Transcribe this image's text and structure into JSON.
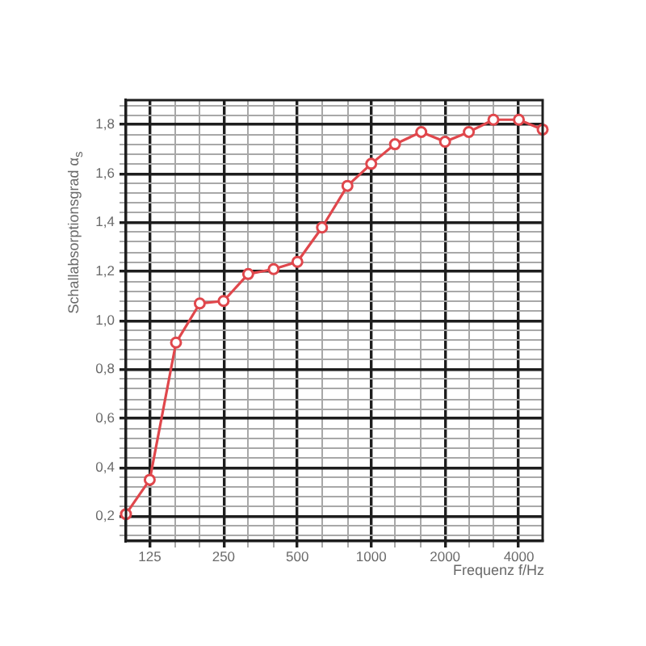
{
  "chart_data": {
    "type": "line",
    "xlabel": "Frequenz f/Hz",
    "ylabel": "Schallabsorptionsgrad α$_{s}$",
    "x": [
      100,
      125,
      160,
      200,
      250,
      315,
      400,
      500,
      630,
      800,
      1000,
      1250,
      1600,
      2000,
      2500,
      3150,
      4000,
      5000
    ],
    "series": [
      {
        "color": "#e0474c",
        "values": [
          0.21,
          0.35,
          0.91,
          1.07,
          1.08,
          1.19,
          1.21,
          1.24,
          1.38,
          1.55,
          1.64,
          1.72,
          1.77,
          1.73,
          1.77,
          1.82,
          1.82,
          1.78
        ]
      }
    ],
    "log": "x",
    "xlim": [
      100,
      5000
    ],
    "ylim": [
      0.1,
      1.9
    ],
    "xticks": [
      125,
      {
        "value": 160,
        "label": null
      },
      {
        "value": 200,
        "label": null
      },
      250,
      {
        "value": 315,
        "label": null
      },
      {
        "value": 400,
        "label": null
      },
      500,
      {
        "value": 630,
        "label": null
      },
      {
        "value": 800,
        "label": null
      },
      1000,
      {
        "value": 1250,
        "label": null
      },
      {
        "value": 1600,
        "label": null
      },
      2000,
      {
        "value": 2500,
        "label": null
      },
      {
        "value": 3150,
        "label": null
      },
      4000
    ],
    "yticks": [
      {
        "value": 0.12,
        "label": null
      },
      {
        "value": 0.16,
        "label": null
      },
      {
        "value": 0.2,
        "label": "0,2"
      },
      {
        "value": 0.24,
        "label": null
      },
      {
        "value": 0.28,
        "label": null
      },
      {
        "value": 0.32,
        "label": null
      },
      {
        "value": 0.36,
        "label": null
      },
      {
        "value": 0.4,
        "label": "0,4"
      },
      {
        "value": 0.44,
        "label": null
      },
      {
        "value": 0.48,
        "label": null
      },
      {
        "value": 0.52,
        "label": null
      },
      {
        "value": 0.56,
        "label": null
      },
      {
        "value": 0.6,
        "label": "0,6"
      },
      {
        "value": 0.64,
        "label": null
      },
      {
        "value": 0.68,
        "label": null
      },
      {
        "value": 0.72,
        "label": null
      },
      {
        "value": 0.76,
        "label": null
      },
      {
        "value": 0.8,
        "label": "0,8"
      },
      {
        "value": 0.84,
        "label": null
      },
      {
        "value": 0.88,
        "label": null
      },
      {
        "value": 0.92,
        "label": null
      },
      {
        "value": 0.96,
        "label": null
      },
      {
        "value": 1.0,
        "label": "1,0"
      },
      {
        "value": 1.04,
        "label": null
      },
      {
        "value": 1.08,
        "label": null
      },
      {
        "value": 1.12,
        "label": null
      },
      {
        "value": 1.16,
        "label": null
      },
      {
        "value": 1.2,
        "label": "1,2"
      },
      {
        "value": 1.24,
        "label": null
      },
      {
        "value": 1.28,
        "label": null
      },
      {
        "value": 1.32,
        "label": null
      },
      {
        "value": 1.36,
        "label": null
      },
      {
        "value": 1.4,
        "label": "1,4"
      },
      {
        "value": 1.44,
        "label": null
      },
      {
        "value": 1.48,
        "label": null
      },
      {
        "value": 1.52,
        "label": null
      },
      {
        "value": 1.56,
        "label": null
      },
      {
        "value": 1.6,
        "label": "1,6"
      },
      {
        "value": 1.64,
        "label": null
      },
      {
        "value": 1.68,
        "label": null
      },
      {
        "value": 1.72,
        "label": null
      },
      {
        "value": 1.76,
        "label": null
      },
      {
        "value": 1.8,
        "label": "1,8"
      },
      {
        "value": 1.84,
        "label": null
      },
      {
        "value": 1.88,
        "label": null
      }
    ],
    "grid": true,
    "marker": "circle",
    "line_style": "solid"
  }
}
